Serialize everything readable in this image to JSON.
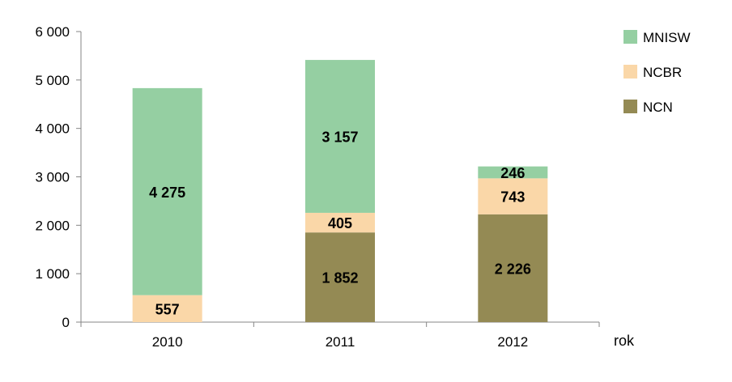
{
  "chart_data": {
    "type": "bar",
    "stacked": true,
    "categories": [
      "2010",
      "2011",
      "2012"
    ],
    "series": [
      {
        "name": "NCN",
        "values": [
          null,
          1852,
          2226
        ],
        "labels": [
          "",
          "1 852",
          "2 226"
        ],
        "color": "#948a54"
      },
      {
        "name": "NCBR",
        "values": [
          557,
          405,
          743
        ],
        "labels": [
          "557",
          "405",
          "743"
        ],
        "color": "#fad7a8"
      },
      {
        "name": "MNISW",
        "values": [
          4275,
          3157,
          246
        ],
        "labels": [
          "4 275",
          "3 157",
          "246"
        ],
        "color": "#95cfa2"
      }
    ],
    "yticks": [
      {
        "value": 0,
        "label": "0"
      },
      {
        "value": 1000,
        "label": "1 000"
      },
      {
        "value": 2000,
        "label": "2 000"
      },
      {
        "value": 3000,
        "label": "3 000"
      },
      {
        "value": 4000,
        "label": "4 000"
      },
      {
        "value": 5000,
        "label": "5 000"
      },
      {
        "value": 6000,
        "label": "6 000"
      }
    ],
    "ylim": [
      0,
      6000
    ],
    "xlabel": "rok",
    "ylabel": "",
    "title": "",
    "grid": false,
    "legend": {
      "placement": "top-right",
      "entries": [
        {
          "name": "MNISW",
          "color": "#95cfa2"
        },
        {
          "name": "NCBR",
          "color": "#fad7a8"
        },
        {
          "name": "NCN",
          "color": "#948a54"
        }
      ]
    }
  }
}
